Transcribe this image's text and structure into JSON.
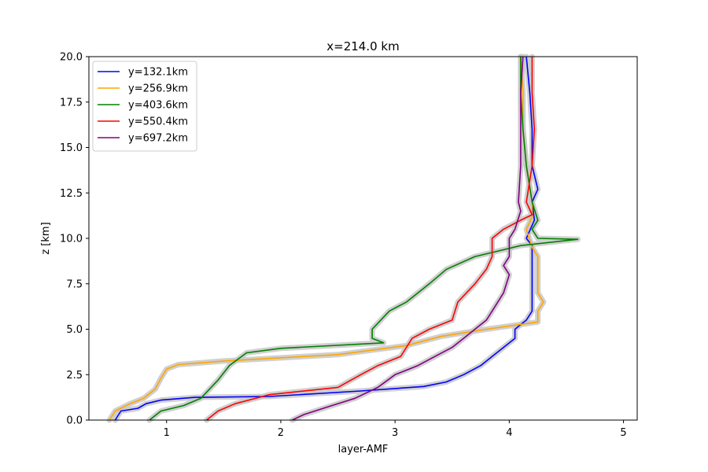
{
  "chart_data": {
    "type": "line",
    "title": "x=214.0 km",
    "xlabel": "layer-AMF",
    "ylabel": "z [km]",
    "xlim": [
      0.32,
      5.12
    ],
    "ylim": [
      0,
      20
    ],
    "xticks": [
      1,
      2,
      3,
      4,
      5
    ],
    "yticks": [
      0.0,
      2.5,
      5.0,
      7.5,
      10.0,
      12.5,
      15.0,
      17.5,
      20.0
    ],
    "xtick_labels": [
      "1",
      "2",
      "3",
      "4",
      "5"
    ],
    "ytick_labels": [
      "0.0",
      "2.5",
      "5.0",
      "7.5",
      "10.0",
      "12.5",
      "15.0",
      "17.5",
      "20.0"
    ],
    "legend_position": "upper-left",
    "uncertainty_band": "gray",
    "series": [
      {
        "name": "y=132.1km",
        "color": "#0000ff",
        "points": [
          [
            0.55,
            0
          ],
          [
            0.6,
            0.5
          ],
          [
            0.75,
            0.65
          ],
          [
            0.82,
            0.9
          ],
          [
            0.95,
            1.1
          ],
          [
            1.25,
            1.25
          ],
          [
            1.9,
            1.3
          ],
          [
            2.7,
            1.6
          ],
          [
            3.25,
            1.85
          ],
          [
            3.45,
            2.1
          ],
          [
            3.6,
            2.5
          ],
          [
            3.75,
            3.0
          ],
          [
            3.85,
            3.5
          ],
          [
            3.95,
            4.0
          ],
          [
            4.05,
            4.5
          ],
          [
            4.05,
            5.0
          ],
          [
            4.15,
            5.5
          ],
          [
            4.2,
            6.0
          ],
          [
            4.2,
            7.0
          ],
          [
            4.2,
            8.0
          ],
          [
            4.2,
            9.0
          ],
          [
            4.2,
            9.6
          ],
          [
            4.15,
            10.0
          ],
          [
            4.22,
            11.0
          ],
          [
            4.2,
            12.0
          ],
          [
            4.25,
            12.7
          ],
          [
            4.2,
            14.0
          ],
          [
            4.2,
            16.0
          ],
          [
            4.18,
            18.0
          ],
          [
            4.15,
            20.0
          ]
        ]
      },
      {
        "name": "y=256.9km",
        "color": "#ffa500",
        "points": [
          [
            0.5,
            0
          ],
          [
            0.55,
            0.5
          ],
          [
            0.68,
            0.9
          ],
          [
            0.8,
            1.2
          ],
          [
            0.9,
            1.7
          ],
          [
            0.95,
            2.3
          ],
          [
            1.0,
            2.8
          ],
          [
            1.1,
            3.05
          ],
          [
            1.5,
            3.25
          ],
          [
            2.5,
            3.6
          ],
          [
            3.1,
            4.1
          ],
          [
            3.4,
            4.6
          ],
          [
            3.8,
            5.0
          ],
          [
            4.25,
            5.4
          ],
          [
            4.25,
            6.0
          ],
          [
            4.3,
            6.5
          ],
          [
            4.25,
            7.0
          ],
          [
            4.25,
            8.0
          ],
          [
            4.25,
            9.0
          ],
          [
            4.2,
            9.5
          ],
          [
            4.15,
            10.5
          ],
          [
            4.2,
            11.2
          ],
          [
            4.2,
            12.0
          ],
          [
            4.15,
            14.0
          ],
          [
            4.12,
            16.0
          ],
          [
            4.12,
            18.0
          ],
          [
            4.1,
            20.0
          ]
        ]
      },
      {
        "name": "y=403.6km",
        "color": "#008000",
        "points": [
          [
            0.85,
            0
          ],
          [
            0.95,
            0.5
          ],
          [
            1.15,
            0.8
          ],
          [
            1.3,
            1.2
          ],
          [
            1.45,
            2.2
          ],
          [
            1.55,
            3.0
          ],
          [
            1.7,
            3.7
          ],
          [
            2.0,
            3.95
          ],
          [
            2.9,
            4.25
          ],
          [
            2.8,
            4.5
          ],
          [
            2.8,
            5.0
          ],
          [
            2.95,
            6.0
          ],
          [
            3.1,
            6.5
          ],
          [
            3.3,
            7.5
          ],
          [
            3.45,
            8.3
          ],
          [
            3.7,
            9.0
          ],
          [
            4.1,
            9.6
          ],
          [
            4.6,
            9.95
          ],
          [
            4.25,
            10.0
          ],
          [
            4.2,
            10.5
          ],
          [
            4.25,
            11.0
          ],
          [
            4.2,
            12.0
          ],
          [
            4.15,
            14.0
          ],
          [
            4.12,
            16.0
          ],
          [
            4.1,
            18.0
          ],
          [
            4.1,
            20.0
          ]
        ]
      },
      {
        "name": "y=550.4km",
        "color": "#ff0000",
        "points": [
          [
            1.35,
            0
          ],
          [
            1.45,
            0.5
          ],
          [
            1.6,
            0.9
          ],
          [
            1.9,
            1.4
          ],
          [
            2.5,
            1.8
          ],
          [
            2.7,
            2.5
          ],
          [
            2.85,
            3.0
          ],
          [
            3.05,
            3.5
          ],
          [
            3.15,
            4.5
          ],
          [
            3.3,
            5.0
          ],
          [
            3.5,
            5.5
          ],
          [
            3.55,
            6.5
          ],
          [
            3.7,
            7.5
          ],
          [
            3.8,
            8.3
          ],
          [
            3.85,
            9.0
          ],
          [
            3.85,
            10.0
          ],
          [
            3.95,
            10.5
          ],
          [
            4.1,
            11.0
          ],
          [
            4.2,
            11.3
          ],
          [
            4.15,
            12.0
          ],
          [
            4.2,
            14.0
          ],
          [
            4.22,
            16.0
          ],
          [
            4.2,
            18.0
          ],
          [
            4.2,
            20.0
          ]
        ]
      },
      {
        "name": "y=697.2km",
        "color": "#800080",
        "points": [
          [
            2.1,
            0
          ],
          [
            2.2,
            0.3
          ],
          [
            2.4,
            0.7
          ],
          [
            2.65,
            1.2
          ],
          [
            2.85,
            1.8
          ],
          [
            3.0,
            2.5
          ],
          [
            3.2,
            3.0
          ],
          [
            3.35,
            3.5
          ],
          [
            3.5,
            4.0
          ],
          [
            3.6,
            4.5
          ],
          [
            3.7,
            5.0
          ],
          [
            3.8,
            5.5
          ],
          [
            3.85,
            6.0
          ],
          [
            3.95,
            7.0
          ],
          [
            4.0,
            8.0
          ],
          [
            3.95,
            8.5
          ],
          [
            4.0,
            9.0
          ],
          [
            4.0,
            10.0
          ],
          [
            4.05,
            10.5
          ],
          [
            4.1,
            11.5
          ],
          [
            4.08,
            12.0
          ],
          [
            4.1,
            14.0
          ],
          [
            4.1,
            16.0
          ],
          [
            4.1,
            18.0
          ],
          [
            4.12,
            20.0
          ]
        ]
      }
    ]
  }
}
